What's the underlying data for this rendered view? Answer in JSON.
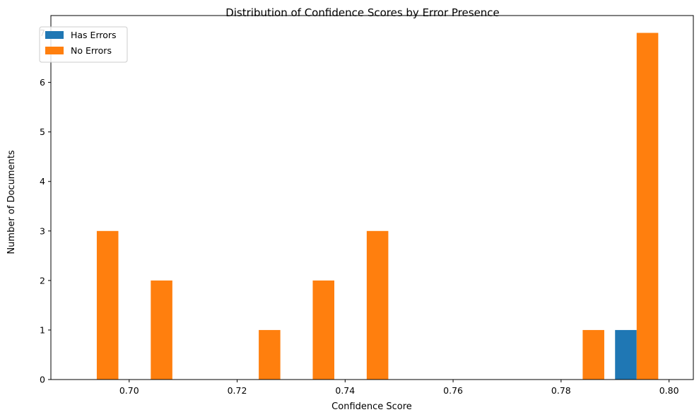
{
  "chart_data": {
    "type": "bar",
    "title": "Distribution of Confidence Scores by Error Presence",
    "xlabel": "Confidence Score",
    "ylabel": "Number of Documents",
    "xlim": [
      0.6855,
      0.8045
    ],
    "ylim": [
      0,
      7.35
    ],
    "xticks": [
      0.7,
      0.72,
      0.74,
      0.76,
      0.78,
      0.8
    ],
    "xtick_labels": [
      "0.70",
      "0.72",
      "0.74",
      "0.76",
      "0.78",
      "0.80"
    ],
    "yticks": [
      0,
      1,
      2,
      3,
      4,
      5,
      6,
      7
    ],
    "ytick_labels": [
      "0",
      "1",
      "2",
      "3",
      "4",
      "5",
      "6",
      "7"
    ],
    "bin_width": 0.008,
    "bar_width": 0.004,
    "legend_position": "upper-left",
    "grid": false,
    "series": [
      {
        "name": "Has Errors",
        "color": "#1f77b4",
        "x": [
          0.79
        ],
        "values": [
          1
        ]
      },
      {
        "name": "No Errors",
        "color": "#ff7f0e",
        "x": [
          0.694,
          0.704,
          0.724,
          0.734,
          0.744,
          0.784,
          0.794
        ],
        "values": [
          3,
          2,
          1,
          2,
          3,
          1,
          7
        ]
      }
    ]
  }
}
